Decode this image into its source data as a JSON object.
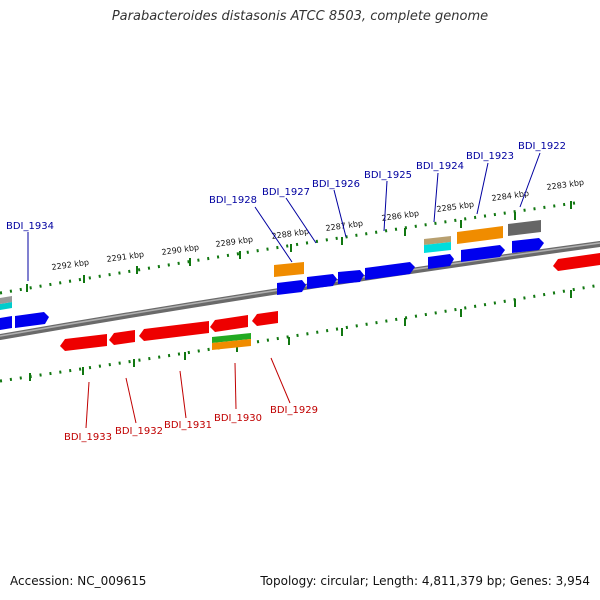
{
  "title": "Parabacteroides distasonis ATCC 8503, complete genome",
  "footer": {
    "accession": "Accession: NC_009615",
    "summary": "Topology: circular; Length: 4,811,379 bp; Genes: 3,954"
  },
  "scale_labels": [
    "2292 kbp",
    "2291 kbp",
    "2290 kbp",
    "2289 kbp",
    "2288 kbp",
    "2287 kbp",
    "2286 kbp",
    "2285 kbp",
    "2284 kbp",
    "2283 kbp"
  ],
  "genes_top": [
    "BDI_1934",
    "BDI_1928",
    "BDI_1927",
    "BDI_1926",
    "BDI_1925",
    "BDI_1924",
    "BDI_1923",
    "BDI_1922"
  ],
  "genes_bottom": [
    "BDI_1933",
    "BDI_1932",
    "BDI_1931",
    "BDI_1930",
    "BDI_1929"
  ],
  "colors": {
    "forward": "#0000ee",
    "reverse": "#ee0000",
    "orange": "#f08c00",
    "green": "#22aa22",
    "cyan": "#00dddd",
    "gray": "#666666",
    "tan": "#b8a070",
    "ruler": "#117711",
    "backbone": "#888888",
    "label_top": "#0000a0",
    "label_bottom": "#c00000"
  }
}
